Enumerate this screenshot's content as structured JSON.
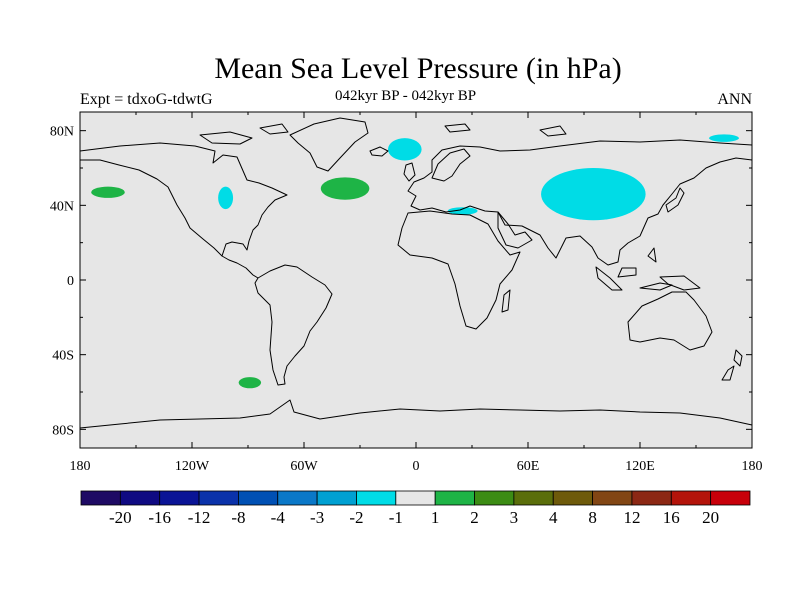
{
  "title": "Mean Sea Level Pressure (in hPa)",
  "subtitle_left": "Expt = tdxoG-tdwtG",
  "subtitle_center": "042kyr BP - 042kyr BP",
  "subtitle_right": "ANN",
  "map": {
    "projection": "cylindrical-equidistant",
    "lon_range": [
      -180,
      180
    ],
    "lat_range": [
      -90,
      90
    ],
    "background_color": "#e6e6e6",
    "coast_color": "#000000",
    "x_ticks": [
      {
        "lon": -180,
        "label": "180"
      },
      {
        "lon": -120,
        "label": "120W"
      },
      {
        "lon": -60,
        "label": "60W"
      },
      {
        "lon": 0,
        "label": "0"
      },
      {
        "lon": 60,
        "label": "60E"
      },
      {
        "lon": 120,
        "label": "120E"
      },
      {
        "lon": 180,
        "label": "180"
      }
    ],
    "y_ticks": [
      {
        "lat": 80,
        "label": "80N"
      },
      {
        "lat": 40,
        "label": "40N"
      },
      {
        "lat": 0,
        "label": "0"
      },
      {
        "lat": -40,
        "label": "40S"
      },
      {
        "lat": -80,
        "label": "80S"
      }
    ],
    "anomaly_regions": [
      {
        "name": "north-pacific-positive",
        "class": "1 to 2",
        "color": "#1eb446",
        "center": [
          -165,
          47
        ],
        "radius": [
          9,
          3
        ]
      },
      {
        "name": "northeast-pacific-negative",
        "class": "-2 to -1",
        "color": "#00dce6",
        "center": [
          -102,
          44
        ],
        "radius": [
          4,
          6
        ]
      },
      {
        "name": "north-atlantic-positive",
        "class": "1 to 2",
        "color": "#1eb446",
        "center": [
          -38,
          49
        ],
        "radius": [
          13,
          6
        ]
      },
      {
        "name": "nordic-seas-negative",
        "class": "-2 to -1",
        "color": "#00dce6",
        "center": [
          -6,
          70
        ],
        "radius": [
          9,
          6
        ]
      },
      {
        "name": "southern-ocean-positive",
        "class": "1 to 2",
        "color": "#1eb446",
        "center": [
          -89,
          -55
        ],
        "radius": [
          6,
          3
        ]
      },
      {
        "name": "eurasia-negative",
        "class": "-2 to -1",
        "color": "#00dce6",
        "center": [
          95,
          46
        ],
        "radius": [
          28,
          14
        ]
      },
      {
        "name": "mediterranean-negative",
        "class": "-2 to -1",
        "color": "#00dce6",
        "center": [
          25,
          37
        ],
        "radius": [
          8,
          2
        ]
      },
      {
        "name": "arctic-siberia-negative",
        "class": "-2 to -1",
        "color": "#00dce6",
        "center": [
          165,
          76
        ],
        "radius": [
          8,
          2
        ]
      }
    ]
  },
  "colorbar": {
    "colors": [
      "#1e0a64",
      "#0f0a82",
      "#0a1496",
      "#0a32aa",
      "#0050b4",
      "#0a78c8",
      "#00a0d2",
      "#00dce6",
      "#e6e6e6",
      "#1eb446",
      "#3c8c14",
      "#5a6e0a",
      "#6e5a0a",
      "#824614",
      "#8c2814",
      "#b4140a",
      "#c8000a"
    ],
    "labels": [
      "-20",
      "-16",
      "-12",
      "-8",
      "-4",
      "-3",
      "-2",
      "-1",
      "1",
      "2",
      "3",
      "4",
      "8",
      "12",
      "16",
      "20"
    ]
  }
}
